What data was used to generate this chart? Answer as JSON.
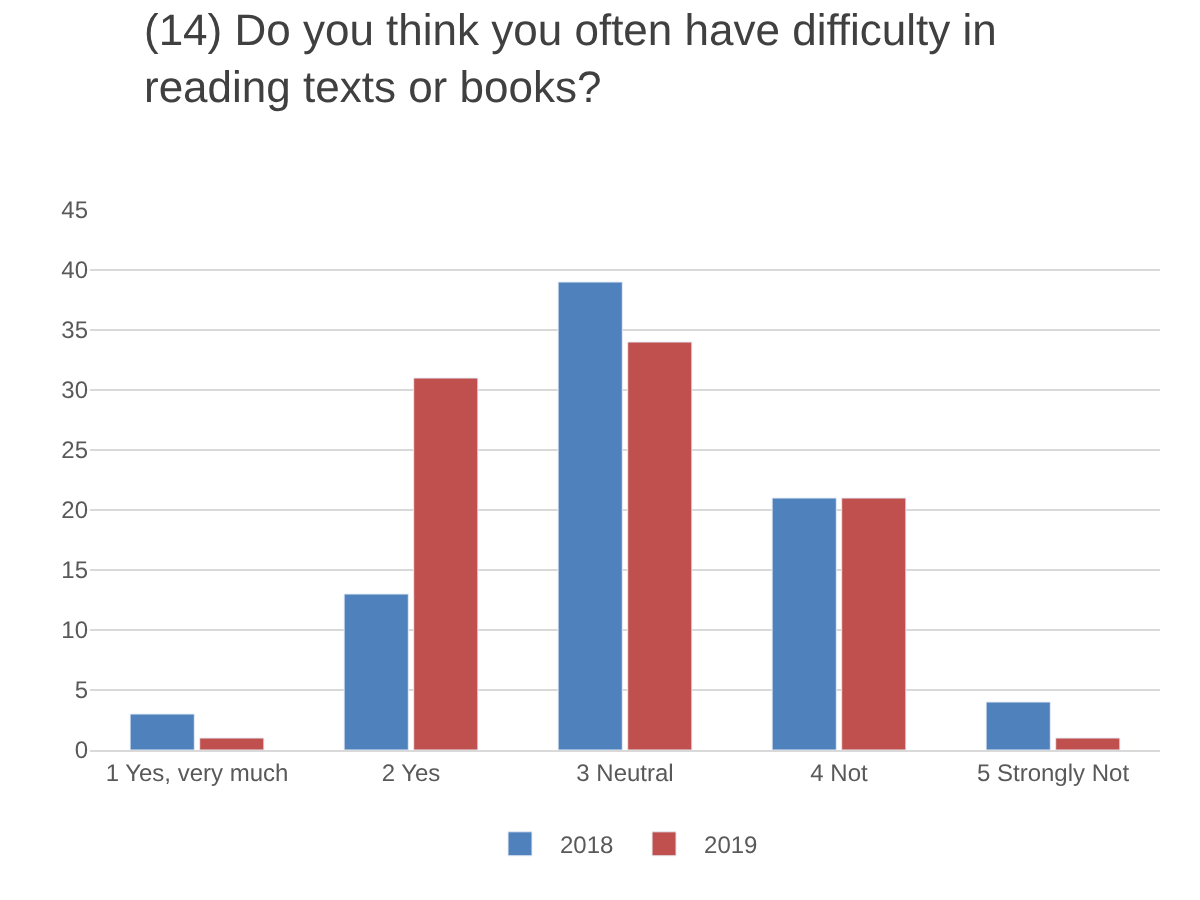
{
  "chart_data": {
    "type": "bar",
    "title": "(14) Do you think you often have difficulty in reading texts or books?",
    "categories": [
      "1 Yes, very much",
      "2 Yes",
      "3 Neutral",
      "4 Not",
      "5 Strongly Not"
    ],
    "series": [
      {
        "name": "2018",
        "color": "#4f81bd",
        "values": [
          3,
          13,
          39,
          21,
          4
        ]
      },
      {
        "name": "2019",
        "color": "#c0504d",
        "values": [
          1,
          31,
          34,
          21,
          1
        ]
      }
    ],
    "ylim": [
      0,
      45
    ],
    "yticks": [
      0,
      5,
      10,
      15,
      20,
      25,
      30,
      35,
      40,
      45
    ],
    "grid": "y",
    "legend": "bottom"
  }
}
